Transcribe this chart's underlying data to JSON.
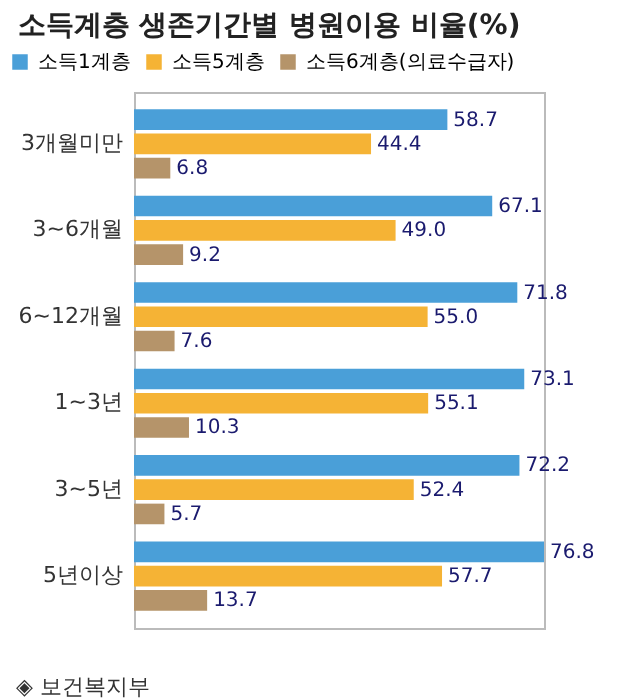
{
  "chart_data": {
    "type": "bar",
    "orientation": "horizontal",
    "title": "소득계층 생존기간별 병원이용 비율(%)",
    "categories": [
      "3개월미만",
      "3~6개월",
      "6~12개월",
      "1~3년",
      "3~5년",
      "5년이상"
    ],
    "series": [
      {
        "name": "소득1계층",
        "color": "#4a9fd8",
        "values": [
          58.7,
          67.1,
          71.8,
          73.1,
          72.2,
          76.8
        ],
        "value_labels": [
          "58.7",
          "67.1",
          "71.8",
          "73.1",
          "72.2",
          "76.8"
        ]
      },
      {
        "name": "소득5계층",
        "color": "#f5b335",
        "values": [
          44.4,
          49.0,
          55.0,
          55.1,
          52.4,
          57.7
        ],
        "value_labels": [
          "44.4",
          "49.0",
          "55.0",
          "55.1",
          "52.4",
          "57.7"
        ]
      },
      {
        "name": "소득6계층(의료수급자)",
        "color": "#b5946a",
        "values": [
          6.8,
          9.2,
          7.6,
          10.3,
          5.7,
          13.7
        ],
        "value_labels": [
          "6.8",
          "9.2",
          "7.6",
          "10.3",
          "5.7",
          "13.7"
        ]
      }
    ],
    "legend": "top left",
    "grid": false,
    "annotations": [
      "◈ 보건복지부"
    ]
  }
}
